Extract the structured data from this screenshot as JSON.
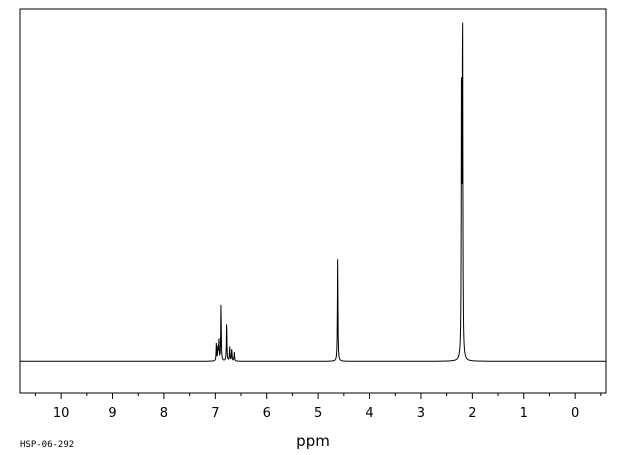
{
  "chart_data": {
    "type": "line",
    "title": "",
    "xlabel": "ppm",
    "ylabel": "",
    "sample_code": "HSP-06-292",
    "x_reversed": true,
    "xlim": [
      10.8,
      -0.6
    ],
    "ylim": [
      -0.09,
      1.0
    ],
    "x_ticks": [
      10,
      9,
      8,
      7,
      6,
      5,
      4,
      3,
      2,
      1,
      0
    ],
    "x_minor_step": 0.5,
    "grid": false,
    "line_color": "#000000",
    "series": [
      {
        "peaks": [
          {
            "x": 2.19,
            "height": 0.98
          },
          {
            "x": 2.21,
            "height": 0.82
          },
          {
            "x": 4.62,
            "height": 0.29
          },
          {
            "x": 6.89,
            "height": 0.16
          },
          {
            "x": 6.98,
            "height": 0.05
          },
          {
            "x": 6.95,
            "height": 0.04
          },
          {
            "x": 6.93,
            "height": 0.06
          },
          {
            "x": 6.78,
            "height": 0.11
          },
          {
            "x": 6.72,
            "height": 0.04
          },
          {
            "x": 6.68,
            "height": 0.035
          },
          {
            "x": 6.63,
            "height": 0.025
          }
        ]
      }
    ]
  }
}
